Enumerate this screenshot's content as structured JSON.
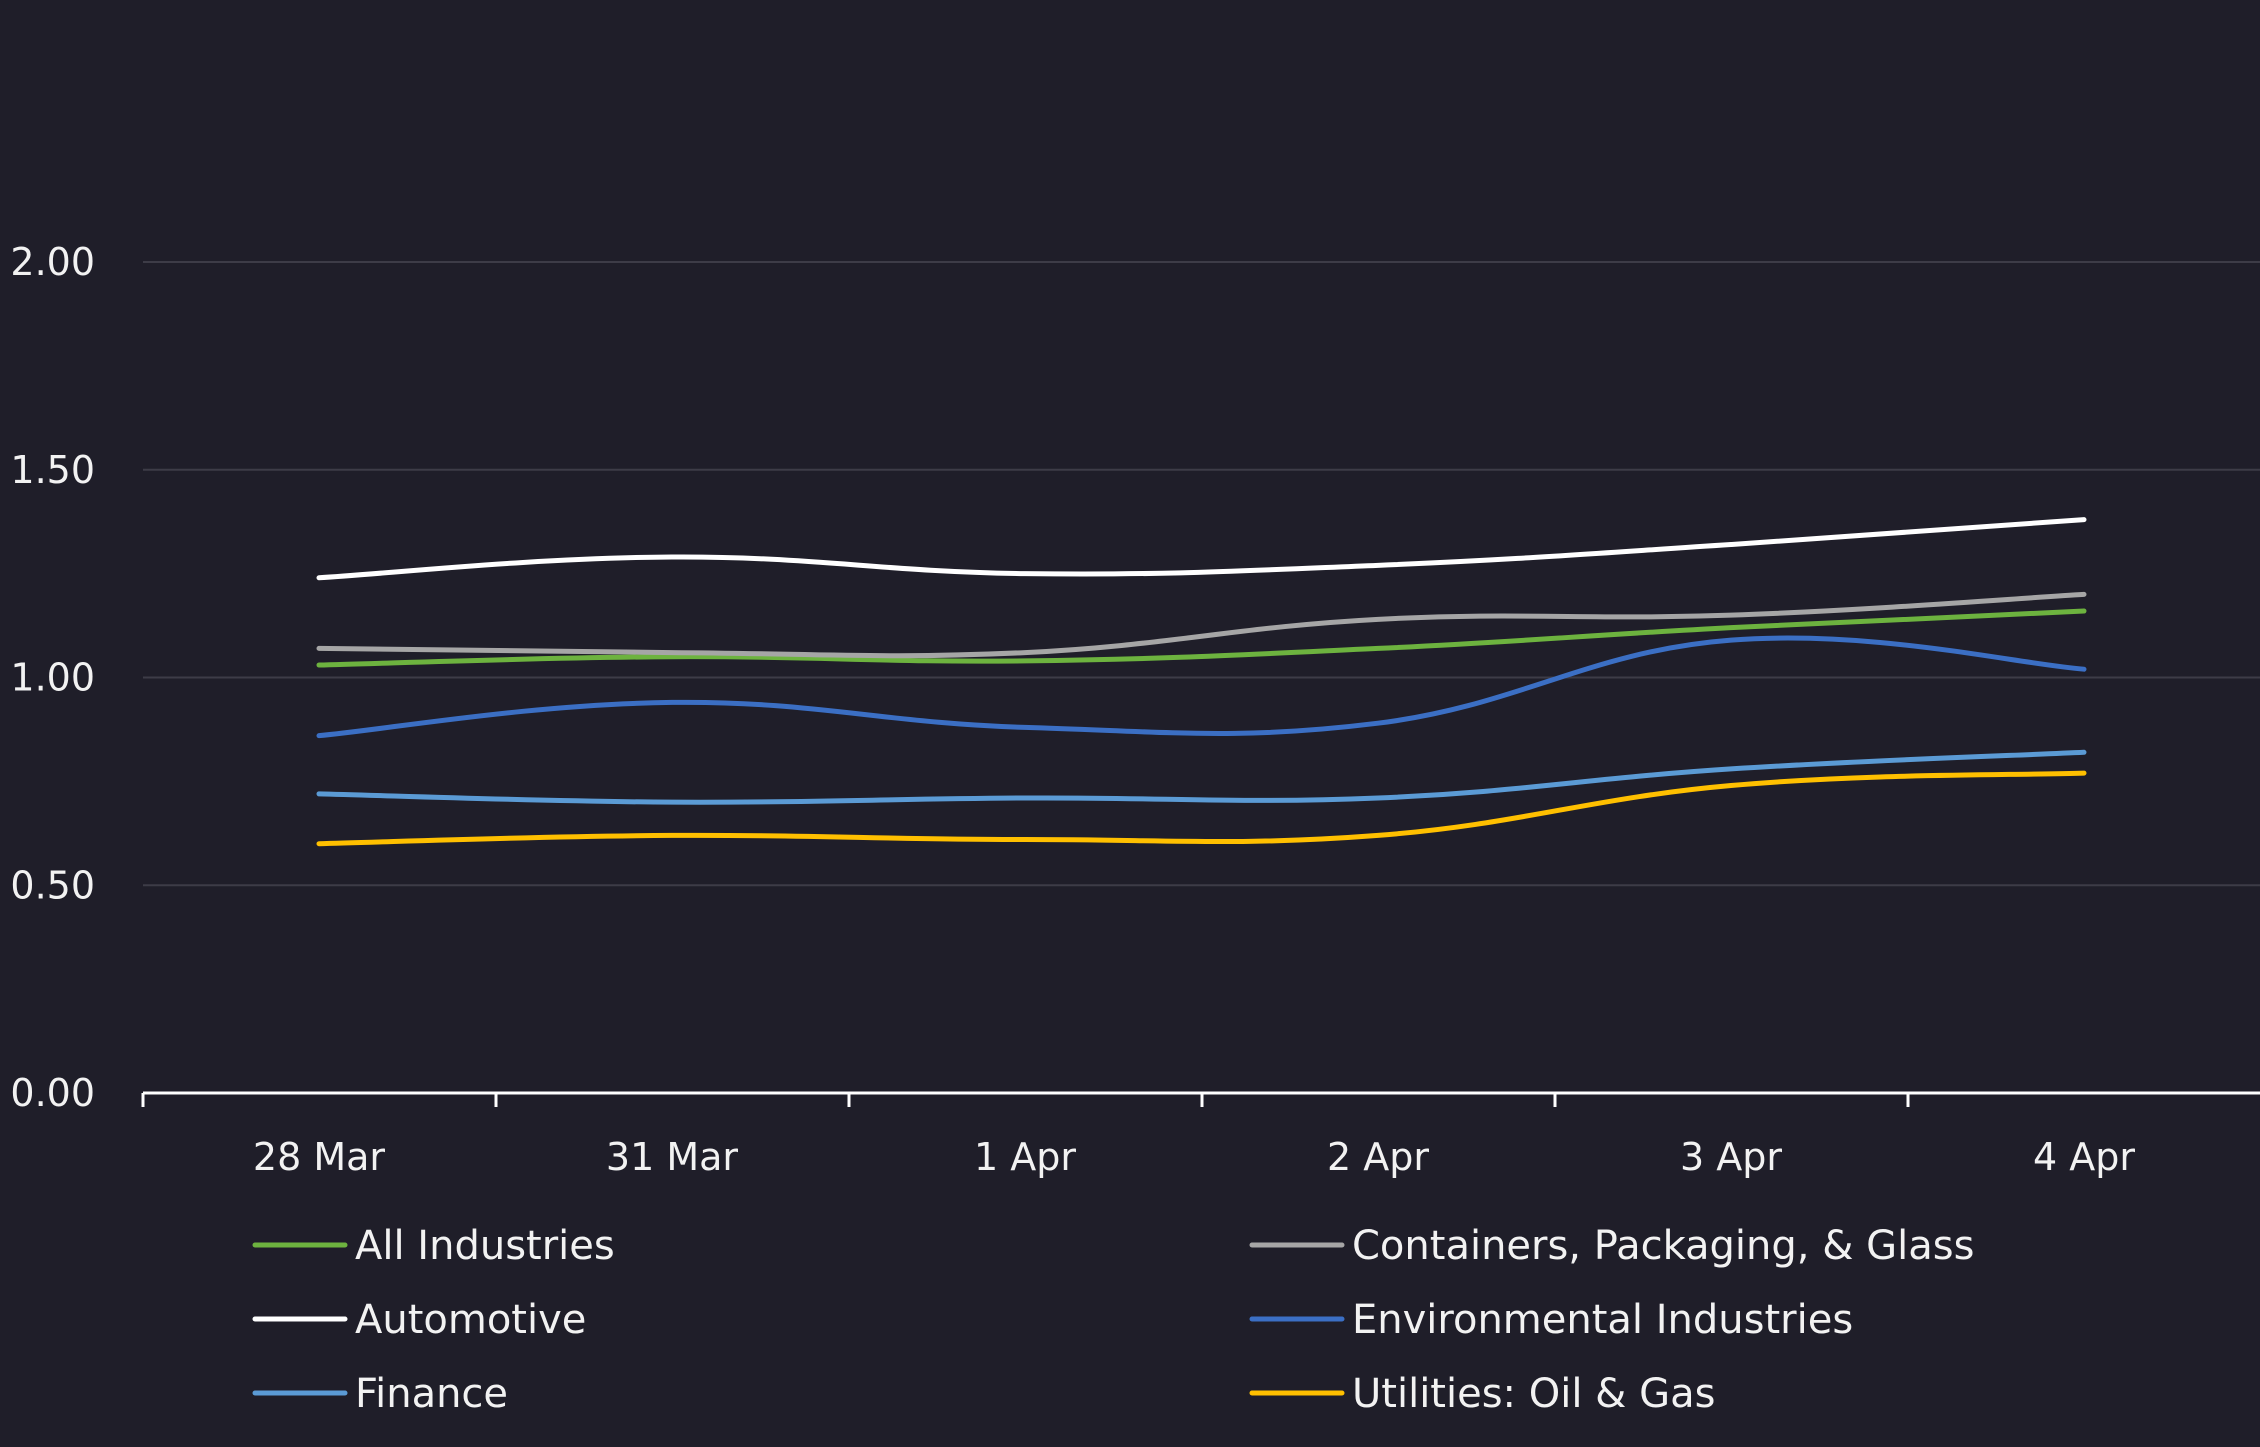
{
  "chart_data": {
    "type": "line",
    "title": "",
    "xlabel": "",
    "ylabel": "",
    "categories": [
      "28 Mar",
      "31 Mar",
      "1 Apr",
      "2 Apr",
      "3 Apr",
      "4 Apr"
    ],
    "ylim": [
      0,
      2
    ],
    "yticks": [
      0,
      0.5,
      1,
      1.5,
      2
    ],
    "ytick_labels": [
      "0.00",
      "0.50",
      "1.00",
      "1.50",
      "2.00"
    ],
    "grid": true,
    "legend_position": "bottom",
    "series": [
      {
        "name": "All Industries",
        "color": "#6db33f",
        "values": [
          1.03,
          1.05,
          1.04,
          1.07,
          1.12,
          1.16
        ]
      },
      {
        "name": "Containers, Packaging, & Glass",
        "color": "#a6a6a6",
        "values": [
          1.07,
          1.06,
          1.06,
          1.14,
          1.15,
          1.2
        ]
      },
      {
        "name": "Automotive",
        "color": "#ffffff",
        "values": [
          1.24,
          1.29,
          1.25,
          1.27,
          1.32,
          1.38
        ]
      },
      {
        "name": "Environmental Industries",
        "color": "#3b6fc4",
        "values": [
          0.86,
          0.94,
          0.88,
          0.89,
          1.09,
          1.02
        ]
      },
      {
        "name": "Finance",
        "color": "#5b9bd5",
        "values": [
          0.72,
          0.7,
          0.71,
          0.71,
          0.78,
          0.82
        ]
      },
      {
        "name": "Utilities: Oil & Gas",
        "color": "#ffc000",
        "values": [
          0.6,
          0.62,
          0.61,
          0.62,
          0.74,
          0.77
        ]
      }
    ]
  }
}
